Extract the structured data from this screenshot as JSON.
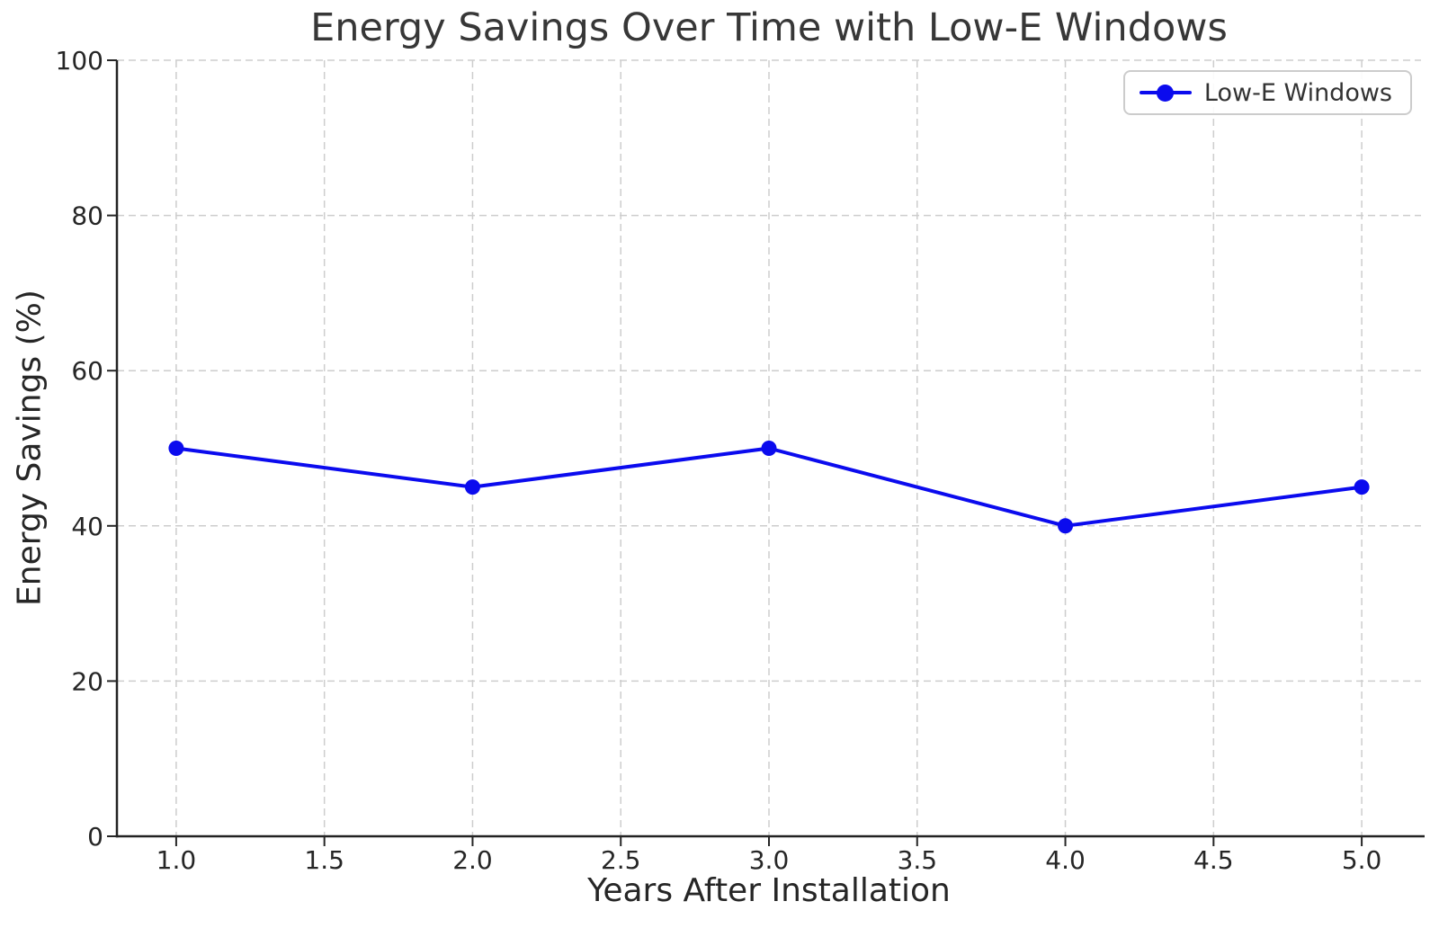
{
  "figure": {
    "background": "#ffffff"
  },
  "chart_data": {
    "type": "line",
    "title": "Energy Savings Over Time with Low-E Windows",
    "xlabel": "Years After Installation",
    "ylabel": "Energy Savings (%)",
    "x": [
      1,
      2,
      3,
      4,
      5
    ],
    "series": [
      {
        "name": "Low-E Windows",
        "color": "#0b0bee",
        "marker": "circle",
        "values": [
          50,
          45,
          50,
          40,
          45
        ]
      }
    ],
    "xlim": [
      0.8,
      5.2
    ],
    "ylim": [
      0,
      100
    ],
    "xtick_values": [
      1.0,
      1.5,
      2.0,
      2.5,
      3.0,
      3.5,
      4.0,
      4.5,
      5.0
    ],
    "xtick_labels": [
      "1.0",
      "1.5",
      "2.0",
      "2.5",
      "3.0",
      "3.5",
      "4.0",
      "4.5",
      "5.0"
    ],
    "ytick_values": [
      0,
      20,
      40,
      60,
      80,
      100
    ],
    "ytick_labels": [
      "0",
      "20",
      "40",
      "60",
      "80",
      "100"
    ],
    "grid": "dashed, both axes",
    "legend_position": "upper right"
  },
  "style": {
    "grid_color": "#cdcdcd",
    "spine_color": "#222222",
    "tick_color": "#262626",
    "tick_label_color": "#262626",
    "title_color": "#373737",
    "axis_label_color": "#262626",
    "legend_border_color": "#cccccc",
    "legend_text_color": "#333333"
  }
}
